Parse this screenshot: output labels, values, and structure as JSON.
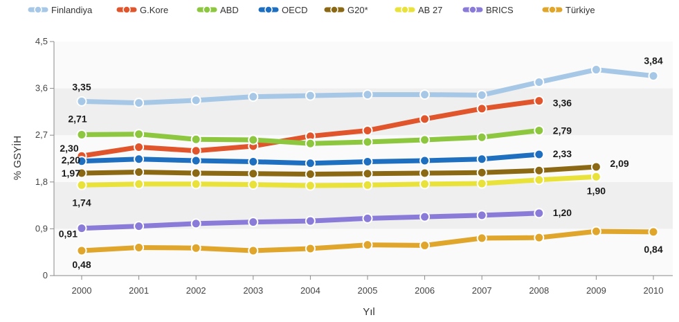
{
  "chart_data": {
    "type": "line",
    "title": "",
    "xlabel": "Yıl",
    "ylabel": "% GSYİH",
    "ylim": [
      0,
      4.5
    ],
    "yticks": [
      "0",
      "0,9",
      "1,8",
      "2,7",
      "3,6",
      "4,5"
    ],
    "ytick_values": [
      0,
      0.9,
      1.8,
      2.7,
      3.6,
      4.5
    ],
    "categories": [
      "2000",
      "2001",
      "2002",
      "2003",
      "2004",
      "2005",
      "2006",
      "2007",
      "2008",
      "2009",
      "2010"
    ],
    "legend_position": "top",
    "grid": "alternating horizontal bands",
    "series": [
      {
        "name": "Finlandiya",
        "color": "#a6c8e6",
        "values": [
          3.35,
          3.32,
          3.37,
          3.44,
          3.46,
          3.48,
          3.48,
          3.47,
          3.72,
          3.96,
          3.84
        ]
      },
      {
        "name": "G.Kore",
        "color": "#e0552b",
        "values": [
          2.3,
          2.47,
          2.4,
          2.49,
          2.68,
          2.79,
          3.01,
          3.21,
          3.36,
          null,
          null
        ]
      },
      {
        "name": "ABD",
        "color": "#8dc63f",
        "values": [
          2.71,
          2.72,
          2.62,
          2.61,
          2.54,
          2.57,
          2.61,
          2.66,
          2.79,
          null,
          null
        ]
      },
      {
        "name": "OECD",
        "color": "#1e6fc0",
        "values": [
          2.2,
          2.24,
          2.21,
          2.19,
          2.16,
          2.19,
          2.21,
          2.24,
          2.33,
          null,
          null
        ]
      },
      {
        "name": "G20*",
        "color": "#8b6914",
        "values": [
          1.97,
          1.99,
          1.97,
          1.96,
          1.95,
          1.96,
          1.97,
          1.98,
          2.02,
          2.09,
          null
        ]
      },
      {
        "name": "AB 27",
        "color": "#e8e23a",
        "values": [
          1.74,
          1.76,
          1.76,
          1.75,
          1.73,
          1.74,
          1.76,
          1.77,
          1.84,
          1.9,
          null
        ]
      },
      {
        "name": "BRICS",
        "color": "#8a7bd9",
        "values": [
          0.91,
          0.95,
          1.0,
          1.03,
          1.05,
          1.1,
          1.13,
          1.16,
          1.2,
          null,
          null
        ]
      },
      {
        "name": "Türkiye",
        "color": "#e0a52b",
        "values": [
          0.48,
          0.54,
          0.53,
          0.48,
          0.52,
          0.59,
          0.58,
          0.72,
          0.73,
          0.85,
          0.84
        ]
      }
    ],
    "data_labels": [
      {
        "series": "Finlandiya",
        "category": "2000",
        "text": "3,35"
      },
      {
        "series": "Finlandiya",
        "category": "2010",
        "text": "3,84"
      },
      {
        "series": "G.Kore",
        "category": "2000",
        "text": "2,30"
      },
      {
        "series": "G.Kore",
        "category": "2008",
        "text": "3,36"
      },
      {
        "series": "ABD",
        "category": "2000",
        "text": "2,71"
      },
      {
        "series": "ABD",
        "category": "2008",
        "text": "2,79"
      },
      {
        "series": "OECD",
        "category": "2000",
        "text": "2,20"
      },
      {
        "series": "OECD",
        "category": "2008",
        "text": "2,33"
      },
      {
        "series": "G20*",
        "category": "2000",
        "text": "1,97"
      },
      {
        "series": "G20*",
        "category": "2009",
        "text": "2,09"
      },
      {
        "series": "AB 27",
        "category": "2000",
        "text": "1,74"
      },
      {
        "series": "AB 27",
        "category": "2009",
        "text": "1,90"
      },
      {
        "series": "BRICS",
        "category": "2000",
        "text": "0,91"
      },
      {
        "series": "BRICS",
        "category": "2008",
        "text": "1,20"
      },
      {
        "series": "Türkiye",
        "category": "2000",
        "text": "0,48"
      },
      {
        "series": "Türkiye",
        "category": "2010",
        "text": "0,84"
      }
    ]
  }
}
